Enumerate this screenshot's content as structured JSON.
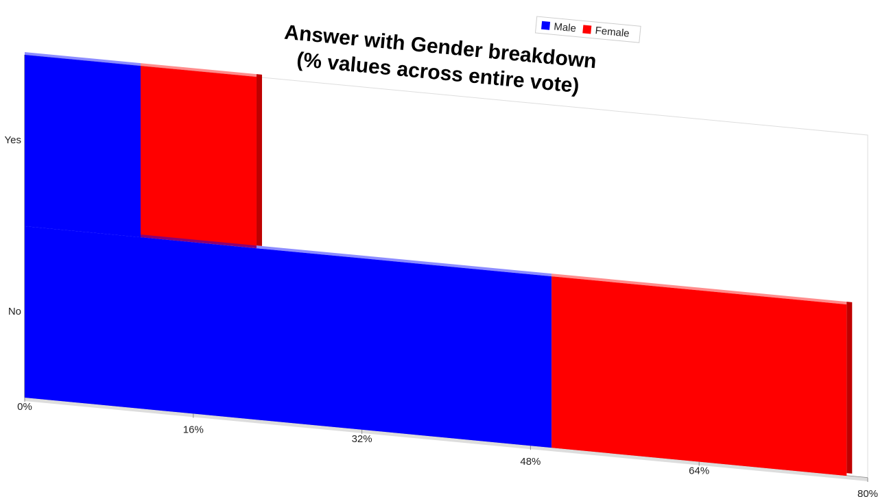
{
  "chart_data": {
    "type": "stacked-bar-horizontal",
    "title": "Answer with Gender breakdown",
    "subtitle": "(% values across entire vote)",
    "categories": [
      "Yes",
      "No"
    ],
    "series": [
      {
        "name": "Male",
        "color": "#0000ff",
        "values": [
          11,
          50
        ]
      },
      {
        "name": "Female",
        "color": "#ff0000",
        "values": [
          11,
          28
        ]
      }
    ],
    "xlim": [
      0,
      80
    ],
    "xticks": [
      {
        "value": 0,
        "label": "0%"
      },
      {
        "value": 16,
        "label": "16%"
      },
      {
        "value": 32,
        "label": "32%"
      },
      {
        "value": 48,
        "label": "48%"
      },
      {
        "value": 64,
        "label": "64%"
      },
      {
        "value": 80,
        "label": "80%"
      }
    ],
    "legend": "top-right"
  }
}
